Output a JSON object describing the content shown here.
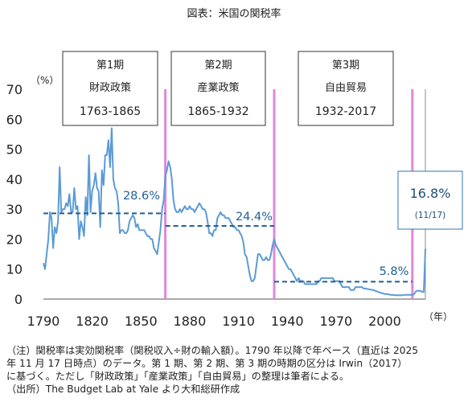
{
  "title": "図表：米国の関税率",
  "chart_data": {
    "type": "line",
    "ylabel": "（%）",
    "xlabel": "（年）",
    "xlim": [
      1790,
      2025
    ],
    "ylim": [
      0,
      70
    ],
    "x_ticks": [
      1790,
      1820,
      1850,
      1880,
      1910,
      1940,
      1970,
      2000
    ],
    "y_ticks": [
      0,
      10,
      20,
      30,
      40,
      50,
      60,
      70
    ],
    "grid": false,
    "color": "#5b9bd5",
    "series": [
      {
        "points": [
          [
            1790,
            12
          ],
          [
            1791,
            10
          ],
          [
            1792,
            15
          ],
          [
            1793,
            20
          ],
          [
            1794,
            29
          ],
          [
            1795,
            27
          ],
          [
            1796,
            17
          ],
          [
            1797,
            24
          ],
          [
            1798,
            22
          ],
          [
            1799,
            26
          ],
          [
            1800,
            44
          ],
          [
            1801,
            29
          ],
          [
            1802,
            30
          ],
          [
            1803,
            30
          ],
          [
            1804,
            32
          ],
          [
            1805,
            31
          ],
          [
            1806,
            35
          ],
          [
            1807,
            29
          ],
          [
            1808,
            29
          ],
          [
            1809,
            37
          ],
          [
            1810,
            30
          ],
          [
            1811,
            31
          ],
          [
            1812,
            20
          ],
          [
            1813,
            26
          ],
          [
            1814,
            24
          ],
          [
            1815,
            21
          ],
          [
            1816,
            34
          ],
          [
            1817,
            28
          ],
          [
            1818,
            48
          ],
          [
            1819,
            29
          ],
          [
            1820,
            36
          ],
          [
            1821,
            38
          ],
          [
            1822,
            42
          ],
          [
            1823,
            37
          ],
          [
            1824,
            36
          ],
          [
            1825,
            24
          ],
          [
            1826,
            43
          ],
          [
            1827,
            38
          ],
          [
            1828,
            48
          ],
          [
            1829,
            48
          ],
          [
            1830,
            53
          ],
          [
            1831,
            44
          ],
          [
            1832,
            57
          ],
          [
            1833,
            40
          ],
          [
            1834,
            37
          ],
          [
            1835,
            36
          ],
          [
            1836,
            32
          ],
          [
            1837,
            22
          ],
          [
            1838,
            23
          ],
          [
            1839,
            23
          ],
          [
            1840,
            22
          ],
          [
            1841,
            22
          ],
          [
            1842,
            23
          ],
          [
            1843,
            26
          ],
          [
            1844,
            27
          ],
          [
            1845,
            28
          ],
          [
            1846,
            27
          ],
          [
            1847,
            24
          ],
          [
            1848,
            25
          ],
          [
            1849,
            23
          ],
          [
            1850,
            23
          ],
          [
            1851,
            23
          ],
          [
            1852,
            23
          ],
          [
            1853,
            22
          ],
          [
            1854,
            21
          ],
          [
            1855,
            21
          ],
          [
            1856,
            20
          ],
          [
            1857,
            20
          ],
          [
            1858,
            17
          ],
          [
            1859,
            16
          ],
          [
            1860,
            15
          ],
          [
            1861,
            19
          ],
          [
            1862,
            23
          ],
          [
            1863,
            30
          ],
          [
            1864,
            33
          ],
          [
            1865,
            41
          ],
          [
            1866,
            43
          ],
          [
            1867,
            46
          ],
          [
            1868,
            44
          ],
          [
            1869,
            40
          ],
          [
            1870,
            33
          ],
          [
            1871,
            30
          ],
          [
            1872,
            29
          ],
          [
            1873,
            29
          ],
          [
            1874,
            30
          ],
          [
            1875,
            29
          ],
          [
            1876,
            30
          ],
          [
            1877,
            31
          ],
          [
            1878,
            30
          ],
          [
            1879,
            30
          ],
          [
            1880,
            31
          ],
          [
            1881,
            30
          ],
          [
            1882,
            30
          ],
          [
            1883,
            29
          ],
          [
            1884,
            30
          ],
          [
            1885,
            31
          ],
          [
            1886,
            32
          ],
          [
            1887,
            31
          ],
          [
            1888,
            30
          ],
          [
            1889,
            30
          ],
          [
            1890,
            29
          ],
          [
            1891,
            26
          ],
          [
            1892,
            22
          ],
          [
            1893,
            22
          ],
          [
            1894,
            21
          ],
          [
            1895,
            23
          ],
          [
            1896,
            23
          ],
          [
            1897,
            27
          ],
          [
            1898,
            28
          ],
          [
            1899,
            29
          ],
          [
            1900,
            28
          ],
          [
            1901,
            28
          ],
          [
            1902,
            27
          ],
          [
            1903,
            27
          ],
          [
            1904,
            27
          ],
          [
            1905,
            26
          ],
          [
            1906,
            25
          ],
          [
            1907,
            24
          ],
          [
            1908,
            24
          ],
          [
            1909,
            23
          ],
          [
            1910,
            23
          ],
          [
            1911,
            22
          ],
          [
            1912,
            21
          ],
          [
            1913,
            19
          ],
          [
            1914,
            15
          ],
          [
            1915,
            14
          ],
          [
            1916,
            11
          ],
          [
            1917,
            8
          ],
          [
            1918,
            6
          ],
          [
            1919,
            6
          ],
          [
            1920,
            7
          ],
          [
            1921,
            11
          ],
          [
            1922,
            15
          ],
          [
            1923,
            15
          ],
          [
            1924,
            14
          ],
          [
            1925,
            13
          ],
          [
            1926,
            13
          ],
          [
            1927,
            14
          ],
          [
            1928,
            13
          ],
          [
            1929,
            13
          ],
          [
            1930,
            15
          ],
          [
            1931,
            18
          ],
          [
            1932,
            20
          ],
          [
            1933,
            18
          ],
          [
            1934,
            17
          ],
          [
            1935,
            16
          ],
          [
            1936,
            15
          ],
          [
            1937,
            14
          ],
          [
            1938,
            13
          ],
          [
            1939,
            12
          ],
          [
            1940,
            11
          ],
          [
            1941,
            10
          ],
          [
            1942,
            10
          ],
          [
            1943,
            9
          ],
          [
            1944,
            8
          ],
          [
            1945,
            7
          ],
          [
            1946,
            6
          ],
          [
            1947,
            7
          ],
          [
            1948,
            6
          ],
          [
            1949,
            6
          ],
          [
            1950,
            6
          ],
          [
            1951,
            5
          ],
          [
            1952,
            5
          ],
          [
            1953,
            5
          ],
          [
            1954,
            5
          ],
          [
            1955,
            5
          ],
          [
            1956,
            5
          ],
          [
            1957,
            5
          ],
          [
            1958,
            5
          ],
          [
            1959,
            6
          ],
          [
            1960,
            6
          ],
          [
            1961,
            7
          ],
          [
            1962,
            7
          ],
          [
            1963,
            7
          ],
          [
            1964,
            7
          ],
          [
            1965,
            7
          ],
          [
            1966,
            7
          ],
          [
            1967,
            7
          ],
          [
            1968,
            7
          ],
          [
            1969,
            6
          ],
          [
            1970,
            6
          ],
          [
            1971,
            6
          ],
          [
            1972,
            6
          ],
          [
            1973,
            5
          ],
          [
            1974,
            4
          ],
          [
            1975,
            4
          ],
          [
            1976,
            4
          ],
          [
            1977,
            4
          ],
          [
            1978,
            4
          ],
          [
            1979,
            3
          ],
          [
            1980,
            3
          ],
          [
            1981,
            3
          ],
          [
            1982,
            4
          ],
          [
            1983,
            4
          ],
          [
            1984,
            4
          ],
          [
            1985,
            4
          ],
          [
            1986,
            4
          ],
          [
            1987,
            3.5
          ],
          [
            1988,
            3.5
          ],
          [
            1989,
            3.4
          ],
          [
            1990,
            3.3
          ],
          [
            1991,
            3.2
          ],
          [
            1992,
            3.1
          ],
          [
            1993,
            3.0
          ],
          [
            1994,
            2.8
          ],
          [
            1995,
            2.6
          ],
          [
            1996,
            2.4
          ],
          [
            1997,
            2.2
          ],
          [
            1998,
            2.0
          ],
          [
            1999,
            1.9
          ],
          [
            2000,
            1.7
          ],
          [
            2001,
            1.7
          ],
          [
            2002,
            1.6
          ],
          [
            2003,
            1.5
          ],
          [
            2004,
            1.4
          ],
          [
            2005,
            1.4
          ],
          [
            2006,
            1.3
          ],
          [
            2007,
            1.3
          ],
          [
            2008,
            1.3
          ],
          [
            2009,
            1.3
          ],
          [
            2010,
            1.3
          ],
          [
            2011,
            1.3
          ],
          [
            2012,
            1.4
          ],
          [
            2013,
            1.4
          ],
          [
            2014,
            1.4
          ],
          [
            2015,
            1.4
          ],
          [
            2016,
            1.4
          ],
          [
            2017,
            1.4
          ],
          [
            2018,
            1.6
          ],
          [
            2019,
            2.5
          ],
          [
            2020,
            2.8
          ],
          [
            2021,
            2.8
          ],
          [
            2022,
            2.7
          ],
          [
            2023,
            2.4
          ],
          [
            2024,
            2.4
          ],
          [
            2025,
            16.8
          ]
        ]
      }
    ],
    "period_dividers": [
      1865,
      1932,
      2017
    ],
    "divider_color": "#dd88dd",
    "periods": [
      {
        "name": "第1期",
        "policy": "財政政策",
        "range": "1763-1865",
        "from": 1790,
        "to": 1865,
        "average": 28.6,
        "average_label": "28.6%"
      },
      {
        "name": "第2期",
        "policy": "産業政策",
        "range": "1865-1932",
        "from": 1865,
        "to": 1932,
        "average": 24.4,
        "average_label": "24.4%"
      },
      {
        "name": "第3期",
        "policy": "自由貿易",
        "range": "1932-2017",
        "from": 1932,
        "to": 2017,
        "average": 5.8,
        "average_label": "5.8%"
      }
    ],
    "latest_callout": {
      "value": "16.8%",
      "date": "(11/17)"
    },
    "average_line_color": "#1f5f99"
  },
  "notes": [
    "（注）関税率は実効関税率（関税収入÷財の輸入額）。1790 年以降で年ベース（直近は 2025",
    "年 11 月 17 日時点）のデータ。第 1 期、第 2 期、第 3 期の時期の区分は Irwin（2017）",
    "に基づく。ただし「財政政策」「産業政策」「自由貿易」の整理は筆者による。",
    "（出所）The Budget Lab at Yale より大和総研作成"
  ]
}
